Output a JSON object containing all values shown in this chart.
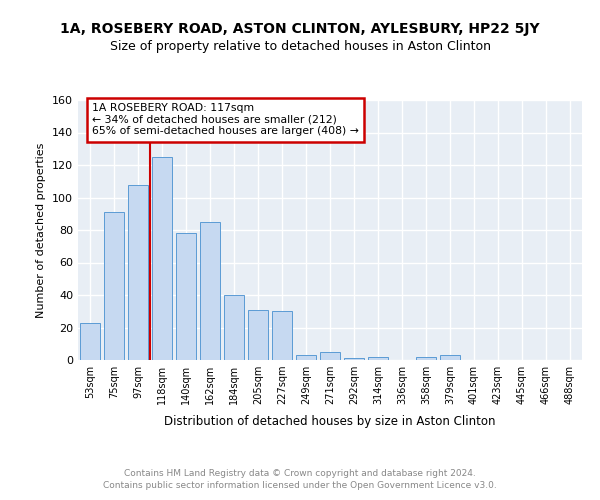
{
  "title1": "1A, ROSEBERY ROAD, ASTON CLINTON, AYLESBURY, HP22 5JY",
  "title2": "Size of property relative to detached houses in Aston Clinton",
  "xlabel": "Distribution of detached houses by size in Aston Clinton",
  "ylabel": "Number of detached properties",
  "categories": [
    "53sqm",
    "75sqm",
    "97sqm",
    "118sqm",
    "140sqm",
    "162sqm",
    "184sqm",
    "205sqm",
    "227sqm",
    "249sqm",
    "271sqm",
    "292sqm",
    "314sqm",
    "336sqm",
    "358sqm",
    "379sqm",
    "401sqm",
    "423sqm",
    "445sqm",
    "466sqm",
    "488sqm"
  ],
  "values": [
    23,
    91,
    108,
    125,
    78,
    85,
    40,
    31,
    30,
    3,
    5,
    1,
    2,
    0,
    2,
    3,
    0,
    0,
    0,
    0,
    0
  ],
  "bar_color": "#c6d9f1",
  "bar_edge_color": "#5b9bd5",
  "vline_color": "#cc0000",
  "vline_index": 3,
  "annotation_line1": "1A ROSEBERY ROAD: 117sqm",
  "annotation_line2": "← 34% of detached houses are smaller (212)",
  "annotation_line3": "65% of semi-detached houses are larger (408) →",
  "ann_box_edgecolor": "#cc0000",
  "ylim": [
    0,
    160
  ],
  "yticks": [
    0,
    20,
    40,
    60,
    80,
    100,
    120,
    140,
    160
  ],
  "grid_color": "#d0d8e8",
  "bg_color": "#e8eef5",
  "footer_text1": "Contains HM Land Registry data © Crown copyright and database right 2024.",
  "footer_text2": "Contains public sector information licensed under the Open Government Licence v3.0.",
  "footer_color": "#888888",
  "title1_fontsize": 10,
  "title2_fontsize": 9
}
